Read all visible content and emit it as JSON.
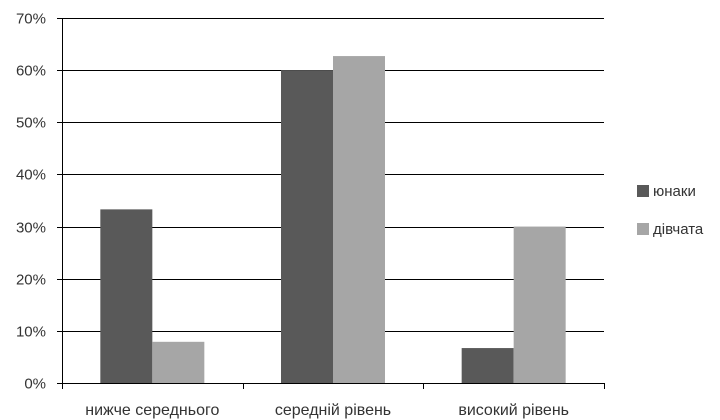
{
  "chart_data": {
    "type": "bar",
    "categories": [
      "нижче середнього",
      "середній рівень",
      "високий рівень"
    ],
    "series": [
      {
        "name": "юнаки",
        "values": [
          33.3,
          60.0,
          6.7
        ],
        "color": "#595959"
      },
      {
        "name": "дівчата",
        "values": [
          7.9,
          62.7,
          30.0
        ],
        "color": "#a6a6a6"
      }
    ],
    "yticks": [
      "0%",
      "10%",
      "20%",
      "30%",
      "40%",
      "50%",
      "60%",
      "70%"
    ],
    "ylim": [
      0,
      70
    ],
    "ystep": 10,
    "grid": true,
    "legend_position": "right",
    "title": "",
    "xlabel": "",
    "ylabel": ""
  }
}
